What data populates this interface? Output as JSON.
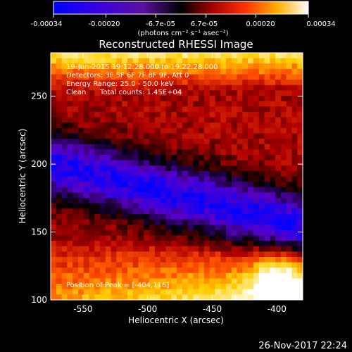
{
  "chart_data": {
    "type": "heatmap",
    "title": "Reconstructed RHESSI Image",
    "xlabel": "Heliocentric X (arcsec)",
    "ylabel": "Heliocentric Y (arcsec)",
    "xlim": [
      -575,
      -380
    ],
    "ylim": [
      100,
      282
    ],
    "x_ticks": [
      "-550",
      "-500",
      "-450",
      "-400"
    ],
    "x_tick_values": [
      -550,
      -500,
      -450,
      -400
    ],
    "y_ticks": [
      "100",
      "150",
      "200",
      "250"
    ],
    "y_tick_values": [
      100,
      150,
      200,
      250
    ],
    "colorbar": {
      "min": -0.00034,
      "max": 0.00034,
      "tick_labels": [
        "-0.00034",
        "-0.00020",
        "-6.7e-05",
        "6.7e-05",
        "0.00020",
        "0.00034"
      ],
      "tick_values": [
        -0.00034,
        -0.0002,
        -6.7e-05,
        6.7e-05,
        0.0002,
        0.00034
      ],
      "unit_label": "(photons cm⁻² s⁻¹ asec⁻²)",
      "colormap": [
        "#0000ff",
        "#5a00c8",
        "#000000",
        "#b00000",
        "#ff5000",
        "#ffd000",
        "#ffffff"
      ]
    },
    "annotations": {
      "time_range": "19-Jun-2015 19:12:28.000 to 19:22:28.000",
      "detectors": "Detectors: 3F 5F 6F 7F 8F 9F, Att 0",
      "energy": "Energy Range: 25.0 - 50.0 keV",
      "clean_label": "Clean",
      "counts": "Total counts: 1.45E+04",
      "peak": "Position of Peak = [-404,116]"
    },
    "footer_date": "26-Nov-2017 22:24"
  }
}
